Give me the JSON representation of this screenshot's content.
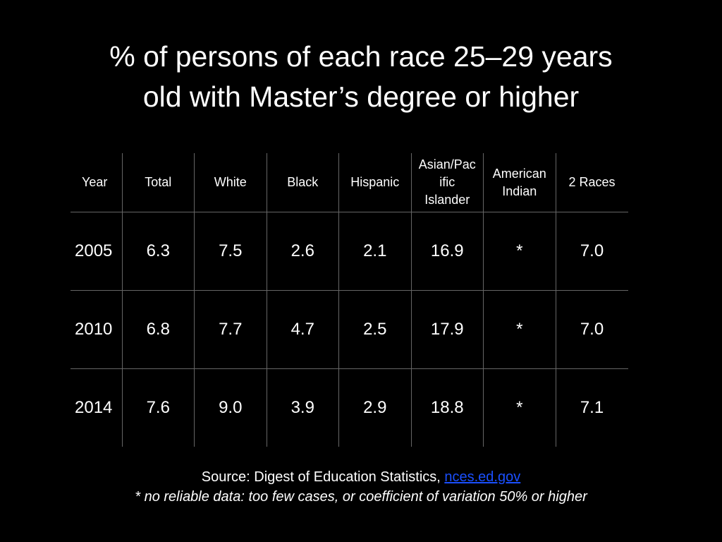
{
  "title": {
    "line1": "% of persons of each race 25–29 years",
    "line2": "old with Master’s degree or higher"
  },
  "table": {
    "headers": {
      "year": "Year",
      "total": "Total",
      "white": "White",
      "black": "Black",
      "hispanic": "Hispanic",
      "asian": [
        "Asian/Pac",
        "ific",
        "Islander"
      ],
      "american_indian": [
        "American",
        "Indian"
      ],
      "two_races": "2 Races"
    },
    "rows": [
      [
        "2005",
        "6.3",
        "7.5",
        "2.6",
        "2.1",
        "16.9",
        "*",
        "7.0"
      ],
      [
        "2010",
        "6.8",
        "7.7",
        "4.7",
        "2.5",
        "17.9",
        "*",
        "7.0"
      ],
      [
        "2014",
        "7.6",
        "9.0",
        "3.9",
        "2.9",
        "18.8",
        "*",
        "7.1"
      ]
    ]
  },
  "footer": {
    "source_prefix": "Source: Digest of Education Statistics, ",
    "source_link": "nces.ed.gov",
    "note": "* no reliable data: too few cases, or coefficient of variation 50% or higher"
  },
  "colors": {
    "background": "#000000",
    "text": "#ffffff",
    "link": "#1a4fff",
    "grid": "#666666"
  }
}
